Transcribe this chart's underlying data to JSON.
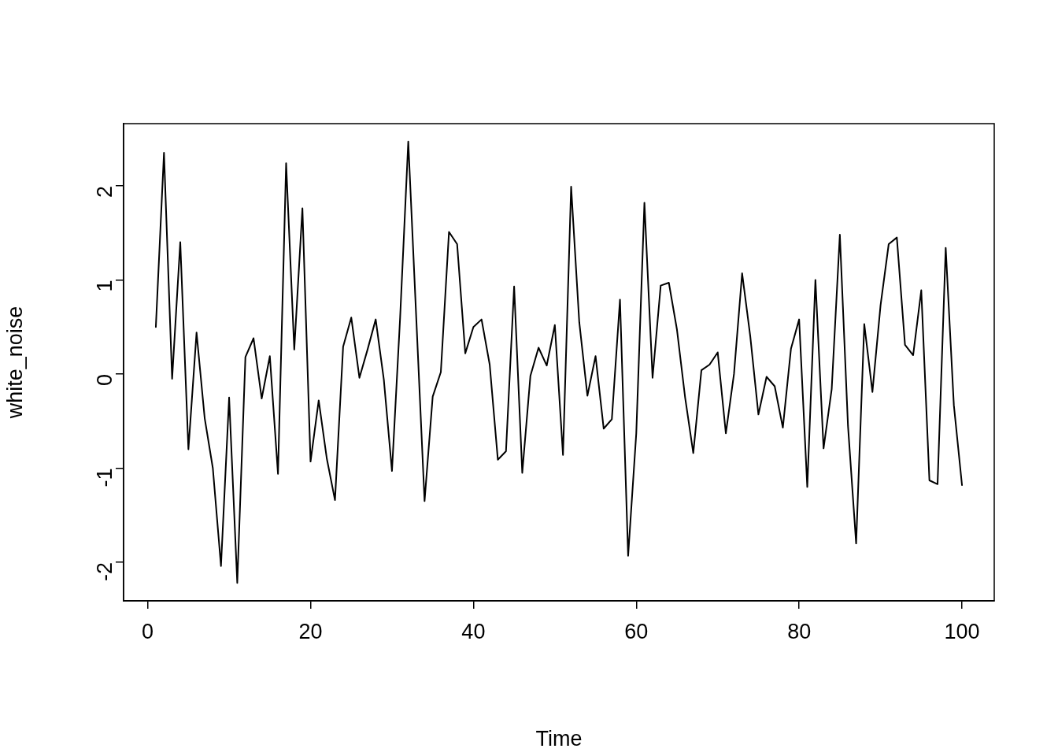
{
  "chart_data": {
    "type": "line",
    "xlabel": "Time",
    "ylabel": "white_noise",
    "x": [
      1,
      2,
      3,
      4,
      5,
      6,
      7,
      8,
      9,
      10,
      11,
      12,
      13,
      14,
      15,
      16,
      17,
      18,
      19,
      20,
      21,
      22,
      23,
      24,
      25,
      26,
      27,
      28,
      29,
      30,
      31,
      32,
      33,
      34,
      35,
      36,
      37,
      38,
      39,
      40,
      41,
      42,
      43,
      44,
      45,
      46,
      47,
      48,
      49,
      50,
      51,
      52,
      53,
      54,
      55,
      56,
      57,
      58,
      59,
      60,
      61,
      62,
      63,
      64,
      65,
      66,
      67,
      68,
      69,
      70,
      71,
      72,
      73,
      74,
      75,
      76,
      77,
      78,
      79,
      80,
      81,
      82,
      83,
      84,
      85,
      86,
      87,
      88,
      89,
      90,
      91,
      92,
      93,
      94,
      95,
      96,
      97,
      98,
      99,
      100
    ],
    "series": [
      {
        "color": "#000000",
        "values": [
          0.5,
          2.35,
          -0.05,
          1.4,
          -0.8,
          0.44,
          -0.47,
          -1.0,
          -2.04,
          -0.25,
          -2.22,
          0.18,
          0.38,
          -0.26,
          0.19,
          -1.06,
          2.24,
          0.26,
          1.76,
          -0.93,
          -0.28,
          -0.9,
          -1.34,
          0.29,
          0.6,
          -0.04,
          0.26,
          0.58,
          -0.06,
          -1.03,
          0.6,
          2.47,
          0.56,
          -1.35,
          -0.24,
          0.02,
          1.51,
          1.38,
          0.22,
          0.5,
          0.58,
          0.1,
          -0.91,
          -0.82,
          0.93,
          -1.05,
          -0.02,
          0.28,
          0.09,
          0.52,
          -0.86,
          1.99,
          0.55,
          -0.23,
          0.19,
          -0.58,
          -0.48,
          0.79,
          -1.93,
          -0.63,
          1.82,
          -0.04,
          0.94,
          0.97,
          0.47,
          -0.25,
          -0.84,
          0.04,
          0.1,
          0.23,
          -0.63,
          0.0,
          1.07,
          0.4,
          -0.43,
          -0.03,
          -0.13,
          -0.57,
          0.27,
          0.58,
          -1.2,
          1.0,
          -0.79,
          -0.16,
          1.48,
          -0.55,
          -1.8,
          0.53,
          -0.19,
          0.73,
          1.38,
          1.45,
          0.31,
          0.2,
          0.89,
          -1.13,
          -1.17,
          1.34,
          -0.33,
          -1.18
        ]
      }
    ],
    "xlim": [
      -2.96,
      103.96
    ],
    "xticks": [
      0,
      20,
      40,
      60,
      80,
      100
    ],
    "ylim": [
      -2.41,
      2.66
    ],
    "yticks": [
      -2,
      -1,
      0,
      1,
      2
    ],
    "grid": false,
    "legend": false,
    "marker": "none",
    "line_style": "solid"
  }
}
